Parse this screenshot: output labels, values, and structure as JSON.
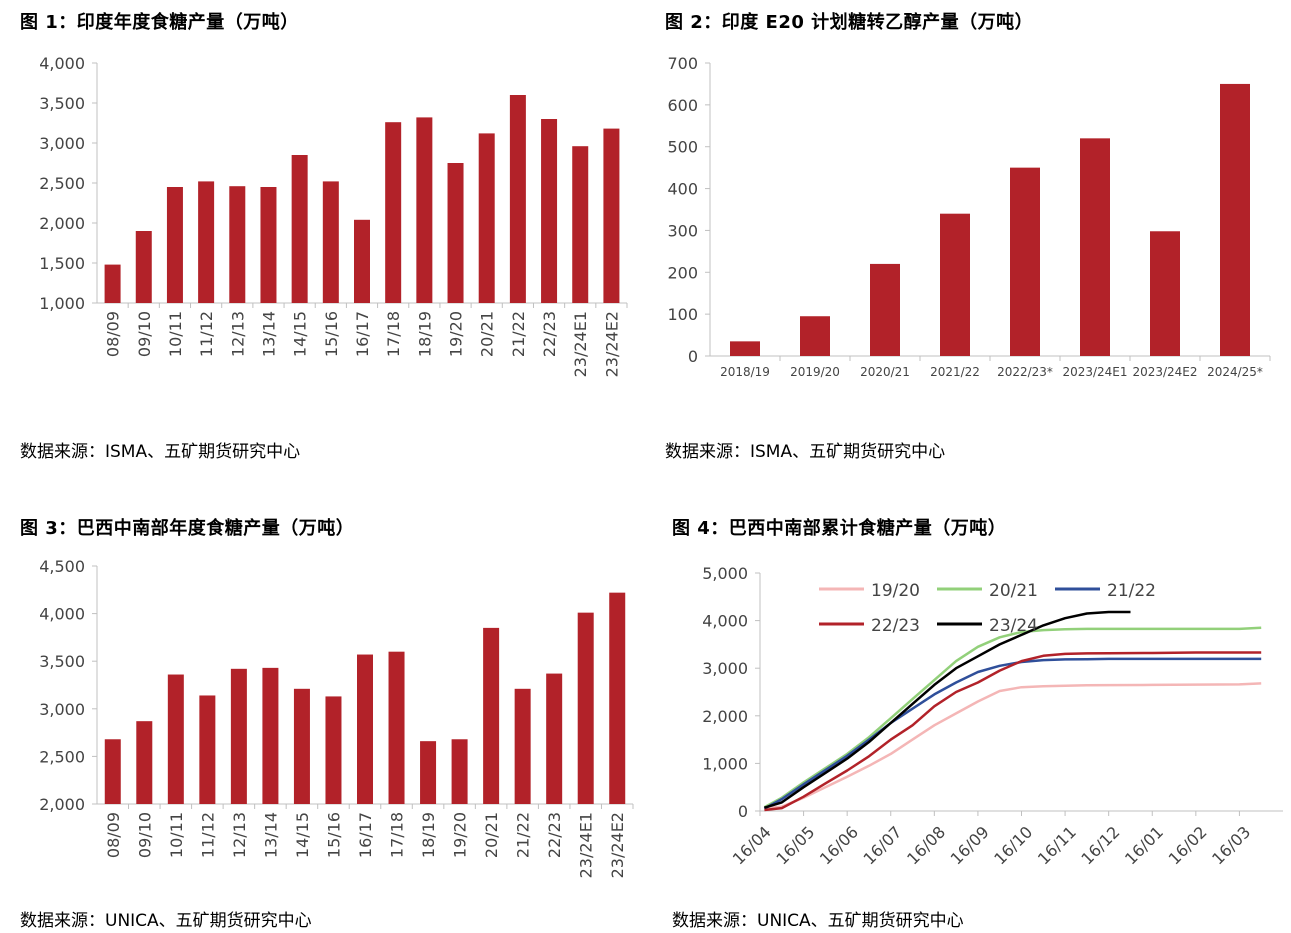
{
  "panels": {
    "fig1": {
      "title": "图 1：印度年度食糖产量（万吨）",
      "source": "数据来源：ISMA、五矿期货研究中心"
    },
    "fig2": {
      "title": "图 2：印度 E20 计划糖转乙醇产量（万吨）",
      "source": "数据来源：ISMA、五矿期货研究中心"
    },
    "fig3": {
      "title": "图 3：巴西中南部年度食糖产量（万吨）",
      "source": "数据来源：UNICA、五矿期货研究中心"
    },
    "fig4": {
      "title": "图 4：巴西中南部累计食糖产量（万吨）",
      "source": "数据来源：UNICA、五矿期货研究中心"
    }
  },
  "colors": {
    "bar": "#b22229",
    "axis": "#c0c0c0",
    "series_19_20": "#f4b6b6",
    "series_20_21": "#92d07a",
    "series_21_22": "#2f4f9a",
    "series_22_23": "#b22229",
    "series_23_24": "#000000"
  },
  "chart_data": [
    {
      "id": "fig1",
      "type": "bar",
      "categories": [
        "08/09",
        "09/10",
        "10/11",
        "11/12",
        "12/13",
        "13/14",
        "14/15",
        "15/16",
        "16/17",
        "17/18",
        "18/19",
        "19/20",
        "20/21",
        "21/22",
        "22/23",
        "23/24E1",
        "23/24E2"
      ],
      "values": [
        1480,
        1900,
        2450,
        2520,
        2460,
        2450,
        2850,
        2520,
        2040,
        3260,
        3320,
        2750,
        3120,
        3600,
        3300,
        2960,
        3180
      ],
      "ylim": [
        1000,
        4000
      ],
      "yticks": [
        1000,
        1500,
        2000,
        2500,
        3000,
        3500,
        4000
      ],
      "ytick_labels": [
        "1,000",
        "1,500",
        "2,000",
        "2,500",
        "3,000",
        "3,500",
        "4,000"
      ]
    },
    {
      "id": "fig2",
      "type": "bar",
      "categories": [
        "2018/19",
        "2019/20",
        "2020/21",
        "2021/22",
        "2022/23*",
        "2023/24E1",
        "2023/24E2",
        "2024/25*"
      ],
      "values": [
        35,
        95,
        220,
        340,
        450,
        520,
        298,
        650
      ],
      "ylim": [
        0,
        700
      ],
      "yticks": [
        0,
        100,
        200,
        300,
        400,
        500,
        600,
        700
      ],
      "ytick_labels": [
        "0",
        "100",
        "200",
        "300",
        "400",
        "500",
        "600",
        "700"
      ]
    },
    {
      "id": "fig3",
      "type": "bar",
      "categories": [
        "08/09",
        "09/10",
        "10/11",
        "11/12",
        "12/13",
        "13/14",
        "14/15",
        "15/16",
        "16/17",
        "17/18",
        "18/19",
        "19/20",
        "20/21",
        "21/22",
        "22/23",
        "23/24E1",
        "23/24E2"
      ],
      "values": [
        2680,
        2870,
        3360,
        3140,
        3420,
        3430,
        3210,
        3130,
        3570,
        3600,
        2660,
        2680,
        3850,
        3210,
        3370,
        4010,
        4220
      ],
      "ylim": [
        2000,
        4500
      ],
      "yticks": [
        2000,
        2500,
        3000,
        3500,
        4000,
        4500
      ],
      "ytick_labels": [
        "2,000",
        "2,500",
        "3,000",
        "3,500",
        "4,000",
        "4,500"
      ]
    },
    {
      "id": "fig4",
      "type": "line",
      "x_labels": [
        "16/04",
        "16/05",
        "16/06",
        "16/07",
        "16/08",
        "16/09",
        "16/10",
        "16/11",
        "16/12",
        "16/01",
        "16/02",
        "16/03"
      ],
      "ylim": [
        0,
        5000
      ],
      "yticks": [
        0,
        1000,
        2000,
        3000,
        4000,
        5000
      ],
      "ytick_labels": [
        "0",
        "1,000",
        "2,000",
        "3,000",
        "4,000",
        "5,000"
      ],
      "series": [
        {
          "name": "19/20",
          "color_key": "series_19_20",
          "x": [
            0.1,
            0.5,
            1,
            1.5,
            2,
            2.5,
            3,
            3.5,
            4,
            4.5,
            5,
            5.5,
            6,
            6.5,
            7,
            7.5,
            8,
            9,
            10,
            11,
            11.5
          ],
          "values": [
            60,
            90,
            280,
            500,
            720,
            950,
            1200,
            1500,
            1800,
            2050,
            2300,
            2520,
            2600,
            2620,
            2630,
            2640,
            2645,
            2650,
            2655,
            2660,
            2680
          ]
        },
        {
          "name": "20/21",
          "color_key": "series_20_21",
          "x": [
            0.1,
            0.5,
            1,
            1.5,
            2,
            2.5,
            3,
            3.5,
            4,
            4.5,
            5,
            5.5,
            6,
            6.5,
            7,
            7.5,
            8,
            9,
            10,
            11,
            11.5
          ],
          "values": [
            80,
            280,
            600,
            900,
            1200,
            1550,
            1950,
            2350,
            2750,
            3150,
            3450,
            3650,
            3760,
            3800,
            3820,
            3825,
            3825,
            3825,
            3825,
            3825,
            3850
          ]
        },
        {
          "name": "21/22",
          "color_key": "series_21_22",
          "x": [
            0.1,
            0.5,
            1,
            1.5,
            2,
            2.5,
            3,
            3.5,
            4,
            4.5,
            5,
            5.5,
            6,
            6.5,
            7,
            7.5,
            8,
            9,
            10,
            11,
            11.5
          ],
          "values": [
            50,
            250,
            560,
            860,
            1160,
            1500,
            1850,
            2150,
            2450,
            2700,
            2920,
            3050,
            3130,
            3170,
            3185,
            3190,
            3195,
            3195,
            3195,
            3195,
            3195
          ]
        },
        {
          "name": "22/23",
          "color_key": "series_22_23",
          "x": [
            0.1,
            0.5,
            1,
            1.5,
            2,
            2.5,
            3,
            3.5,
            4,
            4.5,
            5,
            5.5,
            6,
            6.5,
            7,
            7.5,
            8,
            9,
            10,
            11,
            11.5
          ],
          "values": [
            20,
            60,
            300,
            580,
            850,
            1150,
            1500,
            1800,
            2200,
            2500,
            2700,
            2950,
            3150,
            3260,
            3300,
            3310,
            3315,
            3320,
            3330,
            3330,
            3330
          ]
        },
        {
          "name": "23/24",
          "color_key": "series_23_24",
          "x": [
            0.1,
            0.5,
            1,
            1.5,
            2,
            2.5,
            3,
            3.5,
            4,
            4.5,
            5,
            5.5,
            6,
            6.5,
            7,
            7.5,
            8,
            8.5
          ],
          "values": [
            70,
            180,
            500,
            800,
            1100,
            1450,
            1850,
            2250,
            2650,
            3000,
            3250,
            3500,
            3700,
            3900,
            4050,
            4150,
            4180,
            4180
          ]
        }
      ]
    }
  ]
}
